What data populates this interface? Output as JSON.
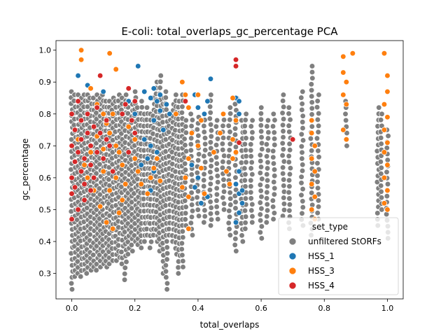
{
  "chart_data": {
    "type": "scatter",
    "title": "E-coli: total_overlaps_gc_percentage PCA",
    "xlabel": "total_overlaps",
    "ylabel": "gc_percentage",
    "xlim": [
      -0.05,
      1.05
    ],
    "ylim": [
      0.22,
      1.03
    ],
    "xticks": [
      0.0,
      0.2,
      0.4,
      0.6,
      0.8,
      1.0
    ],
    "xtick_labels": [
      "0.0",
      "0.2",
      "0.4",
      "0.6",
      "0.8",
      "1.0"
    ],
    "yticks": [
      0.3,
      0.4,
      0.5,
      0.6,
      0.7,
      0.8,
      0.9,
      1.0
    ],
    "ytick_labels": [
      "0.3",
      "0.4",
      "0.5",
      "0.6",
      "0.7",
      "0.8",
      "0.9",
      "1.0"
    ],
    "grid": false,
    "legend": {
      "title": "set_type",
      "placement": "lower-right",
      "entries": [
        {
          "label": "unfiltered StORFs",
          "color": "#7f7f7f"
        },
        {
          "label": "HSS_1",
          "color": "#1f77b4"
        },
        {
          "label": "HSS_3",
          "color": "#ff7f0e"
        },
        {
          "label": "HSS_4",
          "color": "#d62728"
        }
      ]
    },
    "series": [
      {
        "name": "unfiltered StORFs",
        "color": "#7f7f7f",
        "columns": [
          [
            0.0,
            0.25,
            0.87
          ],
          [
            0.01,
            0.29,
            0.86
          ],
          [
            0.02,
            0.3,
            0.86
          ],
          [
            0.03,
            0.29,
            0.85
          ],
          [
            0.04,
            0.31,
            0.86
          ],
          [
            0.05,
            0.3,
            0.86
          ],
          [
            0.06,
            0.31,
            0.85
          ],
          [
            0.07,
            0.32,
            0.85
          ],
          [
            0.08,
            0.31,
            0.86
          ],
          [
            0.09,
            0.32,
            0.85
          ],
          [
            0.1,
            0.33,
            0.86
          ],
          [
            0.11,
            0.32,
            0.84
          ],
          [
            0.12,
            0.33,
            0.84
          ],
          [
            0.13,
            0.34,
            0.85
          ],
          [
            0.14,
            0.34,
            0.84
          ],
          [
            0.15,
            0.35,
            0.86
          ],
          [
            0.16,
            0.33,
            0.85
          ],
          [
            0.17,
            0.28,
            0.86
          ],
          [
            0.18,
            0.36,
            0.84
          ],
          [
            0.19,
            0.37,
            0.83
          ],
          [
            0.2,
            0.4,
            0.87
          ],
          [
            0.21,
            0.39,
            0.82
          ],
          [
            0.22,
            0.38,
            0.84
          ],
          [
            0.23,
            0.4,
            0.8
          ],
          [
            0.24,
            0.42,
            0.82
          ],
          [
            0.25,
            0.38,
            0.8
          ],
          [
            0.26,
            0.42,
            0.85
          ],
          [
            0.27,
            0.4,
            0.9
          ],
          [
            0.28,
            0.37,
            0.92
          ],
          [
            0.29,
            0.3,
            0.85
          ],
          [
            0.3,
            0.25,
            0.87
          ],
          [
            0.31,
            0.42,
            0.8
          ],
          [
            0.32,
            0.4,
            0.83
          ],
          [
            0.33,
            0.36,
            0.86
          ],
          [
            0.34,
            0.3,
            0.84
          ],
          [
            0.35,
            0.32,
            0.86
          ],
          [
            0.36,
            0.45,
            0.78
          ],
          [
            0.38,
            0.42,
            0.8
          ],
          [
            0.4,
            0.48,
            0.79
          ],
          [
            0.42,
            0.46,
            0.8
          ],
          [
            0.44,
            0.45,
            0.86
          ],
          [
            0.46,
            0.47,
            0.78
          ],
          [
            0.48,
            0.5,
            0.8
          ],
          [
            0.5,
            0.42,
            0.82
          ],
          [
            0.52,
            0.37,
            0.85
          ],
          [
            0.54,
            0.4,
            0.78
          ],
          [
            0.55,
            0.44,
            0.8
          ],
          [
            0.57,
            0.46,
            0.78
          ],
          [
            0.6,
            0.41,
            0.82
          ],
          [
            0.62,
            0.46,
            0.78
          ],
          [
            0.64,
            0.47,
            0.8
          ],
          [
            0.67,
            0.48,
            0.86
          ],
          [
            0.69,
            0.44,
            0.82
          ],
          [
            0.73,
            0.45,
            0.87
          ],
          [
            0.76,
            0.42,
            0.95
          ],
          [
            0.78,
            0.47,
            0.86
          ],
          [
            0.87,
            0.7,
            0.84
          ],
          [
            0.97,
            0.45,
            0.82
          ],
          [
            0.98,
            0.5,
            0.8
          ],
          [
            1.0,
            0.41,
            0.75
          ]
        ]
      },
      {
        "name": "HSS_1",
        "color": "#1f77b4",
        "points": [
          [
            0.02,
            0.92
          ],
          [
            0.05,
            0.89
          ],
          [
            0.1,
            0.87
          ],
          [
            0.18,
            0.84
          ],
          [
            0.2,
            0.8
          ],
          [
            0.21,
            0.95
          ],
          [
            0.23,
            0.87
          ],
          [
            0.25,
            0.85
          ],
          [
            0.26,
            0.88
          ],
          [
            0.27,
            0.84
          ],
          [
            0.28,
            0.86
          ],
          [
            0.28,
            0.81
          ],
          [
            0.3,
            0.83
          ],
          [
            0.31,
            0.8
          ],
          [
            0.26,
            0.78
          ],
          [
            0.23,
            0.72
          ],
          [
            0.25,
            0.7
          ],
          [
            0.27,
            0.68
          ],
          [
            0.29,
            0.75
          ],
          [
            0.24,
            0.66
          ],
          [
            0.26,
            0.62
          ],
          [
            0.28,
            0.59
          ],
          [
            0.25,
            0.56
          ],
          [
            0.22,
            0.64
          ],
          [
            0.39,
            0.86
          ],
          [
            0.4,
            0.82
          ],
          [
            0.42,
            0.8
          ],
          [
            0.43,
            0.84
          ],
          [
            0.44,
            0.91
          ],
          [
            0.38,
            0.64
          ],
          [
            0.4,
            0.6
          ],
          [
            0.39,
            0.57
          ],
          [
            0.41,
            0.52
          ],
          [
            0.43,
            0.54
          ],
          [
            0.52,
            0.85
          ],
          [
            0.53,
            0.84
          ],
          [
            0.53,
            0.8
          ],
          [
            0.53,
            0.62
          ],
          [
            0.52,
            0.58
          ],
          [
            0.53,
            0.55
          ],
          [
            0.54,
            0.52
          ],
          [
            0.53,
            0.49
          ],
          [
            0.52,
            0.46
          ],
          [
            0.54,
            0.56
          ]
        ]
      },
      {
        "name": "HSS_3",
        "color": "#ff7f0e",
        "points": [
          [
            0.03,
            1.0
          ],
          [
            0.03,
            0.97
          ],
          [
            0.06,
            0.88
          ],
          [
            0.08,
            0.83
          ],
          [
            0.1,
            0.8
          ],
          [
            0.11,
            0.77
          ],
          [
            0.12,
            0.74
          ],
          [
            0.13,
            0.8
          ],
          [
            0.14,
            0.7
          ],
          [
            0.15,
            0.68
          ],
          [
            0.12,
            0.99
          ],
          [
            0.14,
            0.94
          ],
          [
            0.16,
            0.64
          ],
          [
            0.17,
            0.58
          ],
          [
            0.16,
            0.53
          ],
          [
            0.15,
            0.49
          ],
          [
            0.13,
            0.44
          ],
          [
            0.11,
            0.46
          ],
          [
            0.09,
            0.51
          ],
          [
            0.07,
            0.56
          ],
          [
            0.05,
            0.6
          ],
          [
            0.04,
            0.64
          ],
          [
            0.06,
            0.68
          ],
          [
            0.02,
            0.72
          ],
          [
            0.1,
            0.62
          ],
          [
            0.12,
            0.56
          ],
          [
            0.14,
            0.6
          ],
          [
            0.08,
            0.73
          ],
          [
            0.1,
            0.69
          ],
          [
            0.18,
            0.76
          ],
          [
            0.2,
            0.72
          ],
          [
            0.2,
            0.66
          ],
          [
            0.21,
            0.62
          ],
          [
            0.22,
            0.58
          ],
          [
            0.24,
            0.55
          ],
          [
            0.25,
            0.6
          ],
          [
            0.26,
            0.63
          ],
          [
            0.27,
            0.66
          ],
          [
            0.28,
            0.59
          ],
          [
            0.33,
            0.8
          ],
          [
            0.35,
            0.9
          ],
          [
            0.36,
            0.86
          ],
          [
            0.37,
            0.82
          ],
          [
            0.38,
            0.74
          ],
          [
            0.37,
            0.66
          ],
          [
            0.36,
            0.6
          ],
          [
            0.37,
            0.54
          ],
          [
            0.35,
            0.57
          ],
          [
            0.4,
            0.86
          ],
          [
            0.41,
            0.78
          ],
          [
            0.4,
            0.7
          ],
          [
            0.41,
            0.63
          ],
          [
            0.42,
            0.55
          ],
          [
            0.45,
            0.68
          ],
          [
            0.47,
            0.74
          ],
          [
            0.48,
            0.8
          ],
          [
            0.49,
            0.62
          ],
          [
            0.5,
            0.58
          ],
          [
            0.37,
            0.44
          ],
          [
            0.51,
            0.85
          ],
          [
            0.52,
            0.78
          ],
          [
            0.51,
            0.72
          ],
          [
            0.52,
            0.68
          ],
          [
            0.51,
            0.66
          ],
          [
            0.76,
            0.78
          ],
          [
            0.76,
            0.74
          ],
          [
            0.77,
            0.7
          ],
          [
            0.76,
            0.66
          ],
          [
            0.77,
            0.62
          ],
          [
            0.76,
            0.58
          ],
          [
            0.77,
            0.54
          ],
          [
            0.76,
            0.5
          ],
          [
            0.77,
            0.47
          ],
          [
            0.86,
            0.98
          ],
          [
            0.86,
            0.93
          ],
          [
            0.87,
            0.9
          ],
          [
            0.86,
            0.86
          ],
          [
            0.87,
            0.83
          ],
          [
            0.86,
            0.75
          ],
          [
            0.87,
            0.72
          ],
          [
            0.89,
            0.99
          ],
          [
            0.99,
            0.99
          ],
          [
            1.0,
            0.92
          ],
          [
            1.0,
            0.87
          ],
          [
            0.99,
            0.83
          ],
          [
            1.0,
            0.79
          ],
          [
            0.99,
            0.75
          ],
          [
            1.0,
            0.71
          ],
          [
            0.99,
            0.68
          ],
          [
            1.0,
            0.64
          ],
          [
            0.99,
            0.6
          ],
          [
            1.0,
            0.56
          ],
          [
            0.99,
            0.52
          ],
          [
            1.0,
            0.5
          ]
        ]
      },
      {
        "name": "HSS_4",
        "color": "#d62728",
        "points": [
          [
            0.0,
            0.47
          ],
          [
            0.0,
            0.55
          ],
          [
            0.0,
            0.6
          ],
          [
            0.01,
            0.65
          ],
          [
            0.0,
            0.7
          ],
          [
            0.01,
            0.75
          ],
          [
            0.0,
            0.8
          ],
          [
            0.02,
            0.84
          ],
          [
            0.03,
            0.78
          ],
          [
            0.03,
            0.72
          ],
          [
            0.02,
            0.68
          ],
          [
            0.03,
            0.62
          ],
          [
            0.04,
            0.58
          ],
          [
            0.04,
            0.66
          ],
          [
            0.05,
            0.74
          ],
          [
            0.05,
            0.8
          ],
          [
            0.06,
            0.7
          ],
          [
            0.06,
            0.64
          ],
          [
            0.07,
            0.76
          ],
          [
            0.07,
            0.6
          ],
          [
            0.08,
            0.68
          ],
          [
            0.08,
            0.82
          ],
          [
            0.09,
            0.74
          ],
          [
            0.09,
            0.92
          ],
          [
            0.1,
            0.66
          ],
          [
            0.11,
            0.72
          ],
          [
            0.11,
            0.78
          ],
          [
            0.12,
            0.7
          ],
          [
            0.13,
            0.62
          ],
          [
            0.16,
            0.8
          ],
          [
            0.17,
            0.83
          ],
          [
            0.18,
            0.88
          ],
          [
            0.19,
            0.78
          ],
          [
            0.2,
            0.84
          ],
          [
            0.2,
            0.74
          ],
          [
            0.18,
            0.68
          ],
          [
            0.36,
            0.84
          ],
          [
            0.52,
            0.97
          ],
          [
            0.52,
            0.95
          ],
          [
            0.53,
            0.71
          ],
          [
            0.7,
            0.72
          ],
          [
            0.02,
            0.5
          ],
          [
            0.01,
            0.57
          ],
          [
            0.04,
            0.53
          ],
          [
            0.06,
            0.56
          ]
        ]
      }
    ]
  }
}
